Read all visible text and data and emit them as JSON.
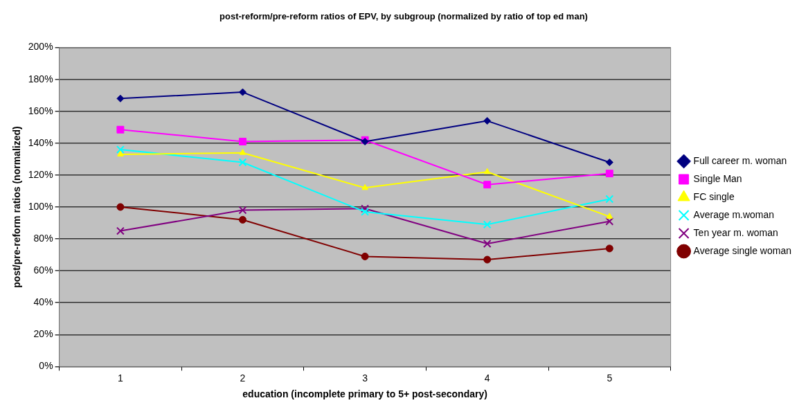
{
  "chart_data": {
    "type": "line",
    "title": "post-reform/pre-reform ratios of EPV, by subgroup (normalized by ratio of top ed man)",
    "xlabel": "education (incomplete primary to 5+ post-secondary)",
    "ylabel": "post/pre-reform ratios (normalized)",
    "categories": [
      "1",
      "2",
      "3",
      "4",
      "5"
    ],
    "series": [
      {
        "name": "Full career m. woman",
        "color": "#000080",
        "marker": "diamond",
        "values": [
          168,
          172,
          141,
          154,
          128
        ]
      },
      {
        "name": "Single Man",
        "color": "#ff00ff",
        "marker": "square",
        "values": [
          148.5,
          141,
          142,
          114,
          121
        ]
      },
      {
        "name": "FC single",
        "color": "#ffff00",
        "marker": "triangle",
        "values": [
          133,
          134,
          112,
          122,
          94
        ]
      },
      {
        "name": "Average m.woman",
        "color": "#00ffff",
        "marker": "cross",
        "values": [
          136,
          128,
          97,
          89,
          105
        ]
      },
      {
        "name": "Ten year m. woman",
        "color": "#800080",
        "marker": "cross",
        "values": [
          85,
          98,
          99,
          77,
          91
        ]
      },
      {
        "name": "Average single woman",
        "color": "#800000",
        "marker": "circle",
        "values": [
          100,
          92,
          69,
          67,
          74
        ]
      }
    ],
    "ylim": [
      0,
      200
    ],
    "yticks": [
      {
        "value": 0,
        "label": "0%"
      },
      {
        "value": 20,
        "label": "20%"
      },
      {
        "value": 40,
        "label": "40%"
      },
      {
        "value": 60,
        "label": "60%"
      },
      {
        "value": 80,
        "label": "80%"
      },
      {
        "value": 100,
        "label": "100%"
      },
      {
        "value": 120,
        "label": "120%"
      },
      {
        "value": 140,
        "label": "140%"
      },
      {
        "value": 160,
        "label": "160%"
      },
      {
        "value": 180,
        "label": "180%"
      },
      {
        "value": 200,
        "label": "200%"
      }
    ],
    "grid": "y",
    "legend": "right",
    "line_style": "solid"
  }
}
